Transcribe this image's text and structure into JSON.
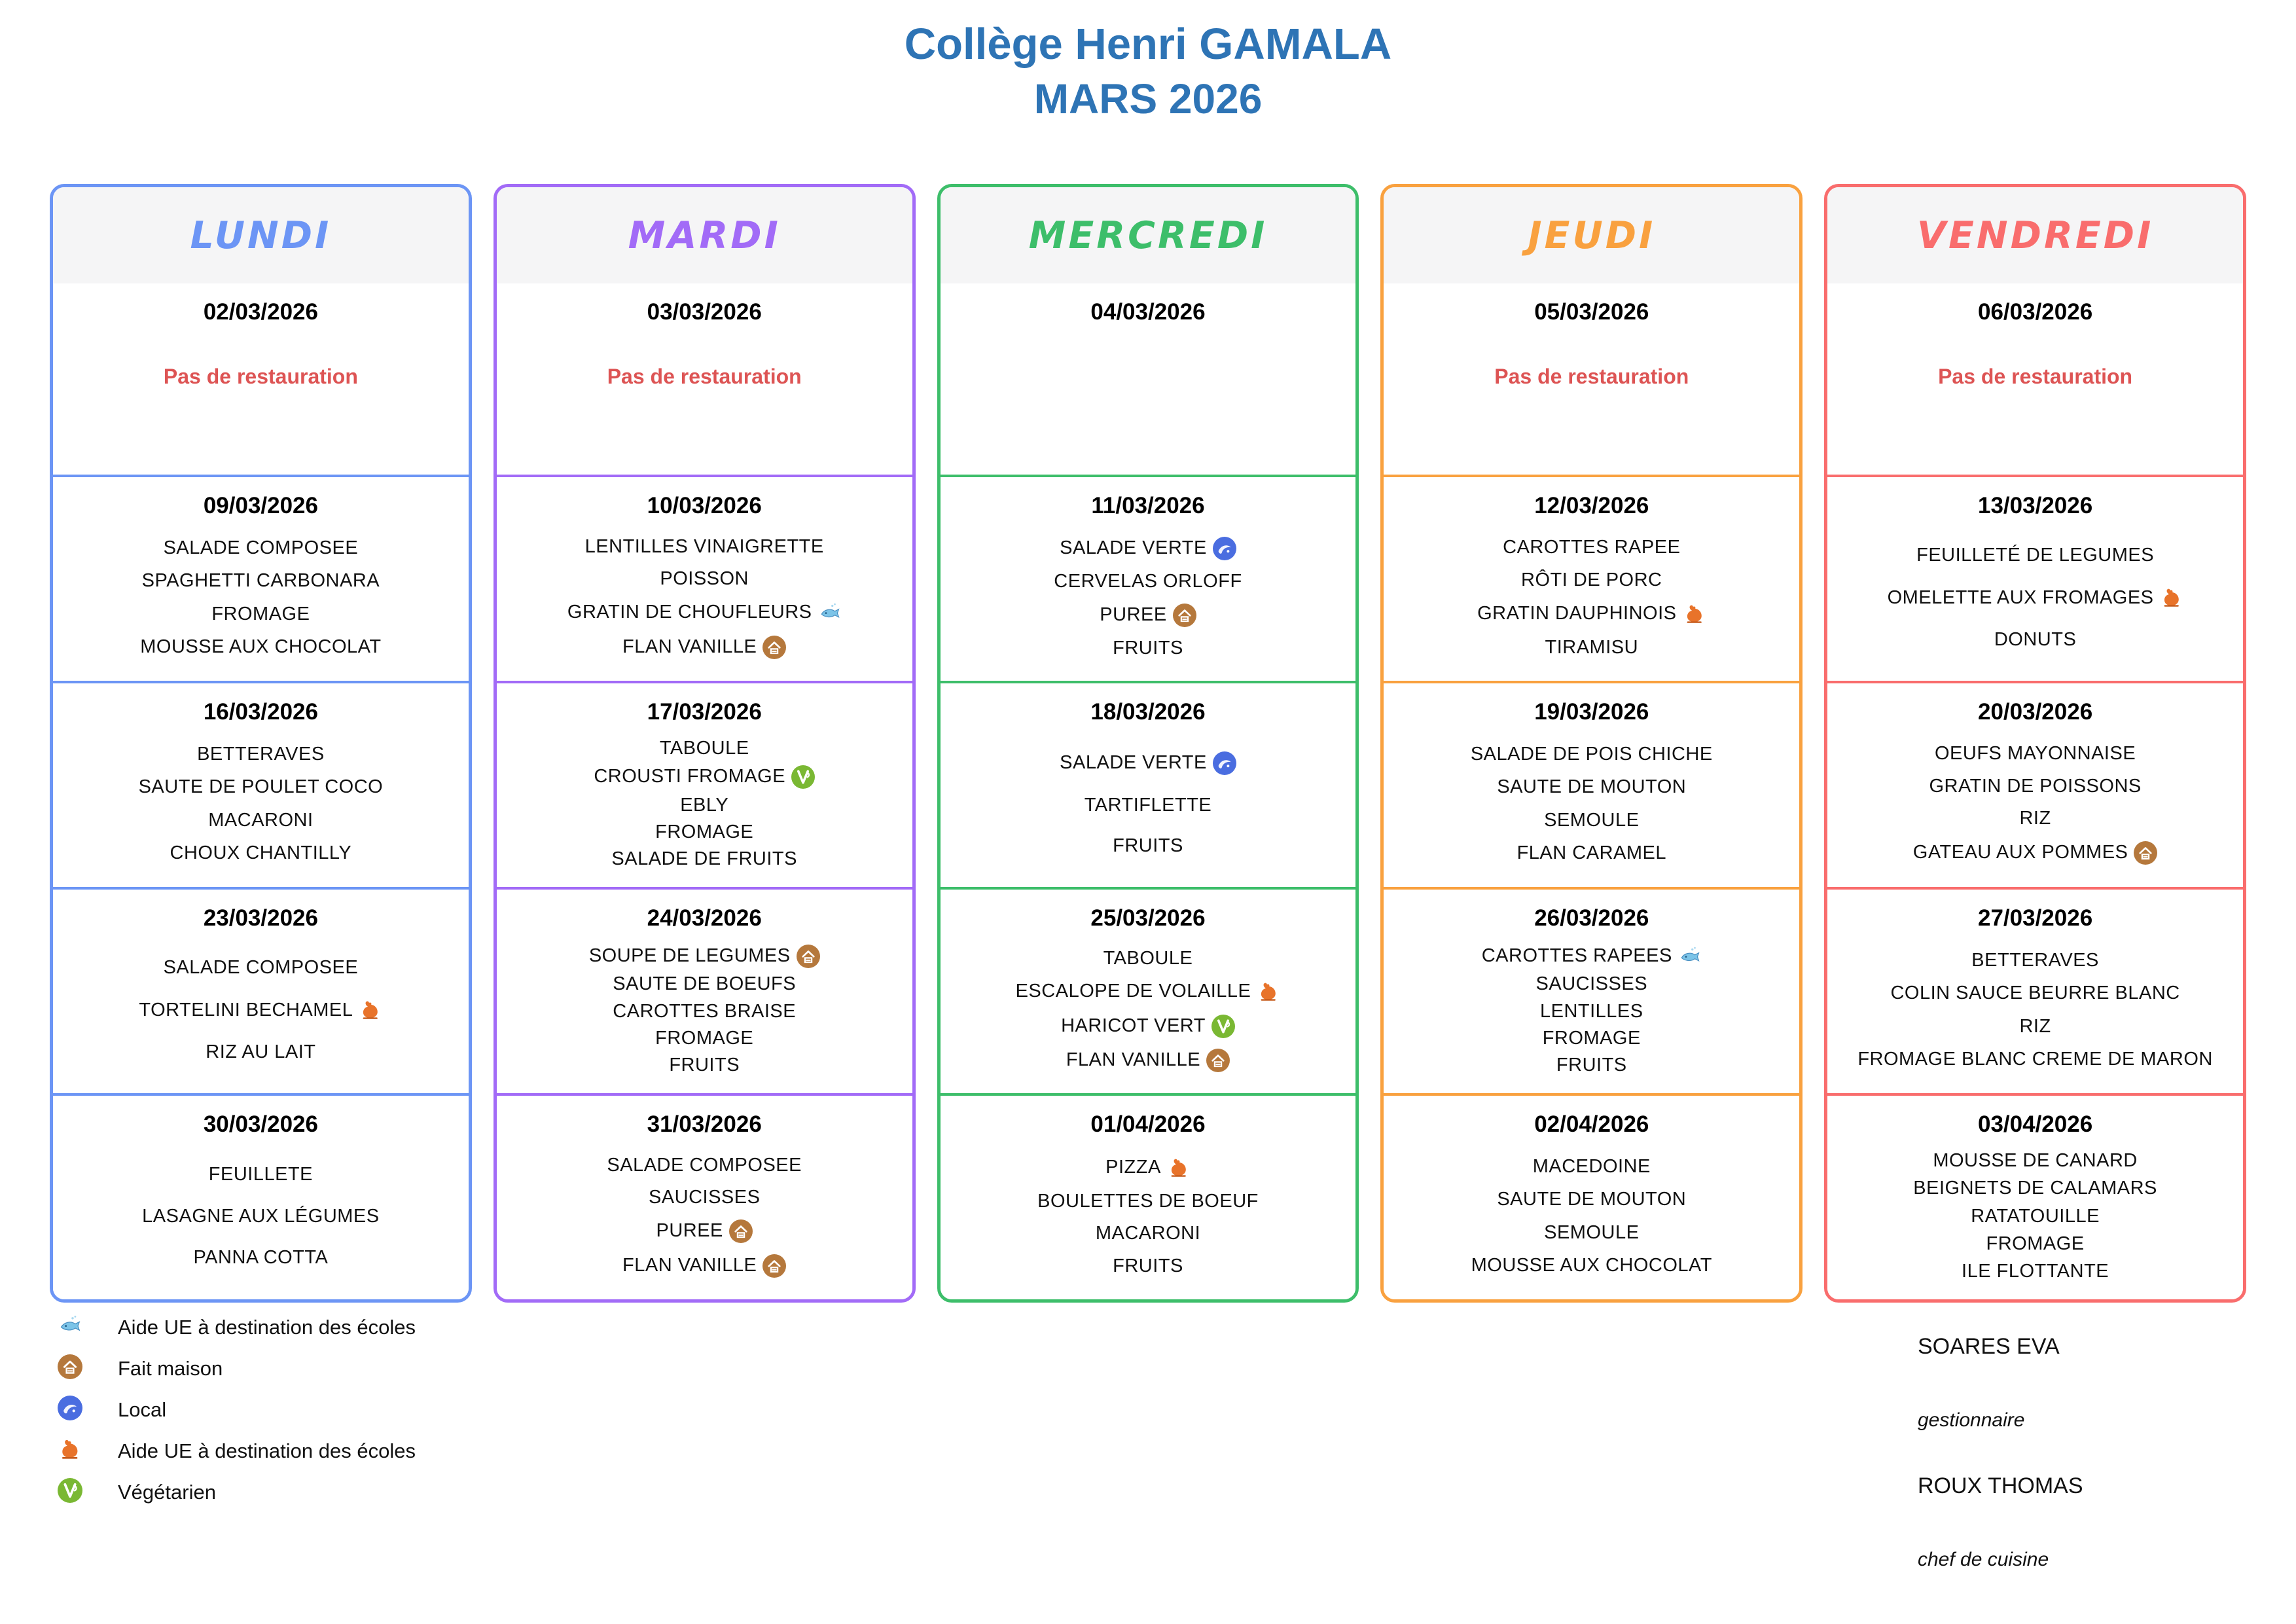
{
  "title": {
    "line1": "Collège Henri GAMALA",
    "line2": "MARS 2026"
  },
  "palette": {
    "title_blue": "#2E74B5",
    "monday_blue": "#6C95F5",
    "tuesday_purple": "#A26BF7",
    "wednesday_green": "#3DBE6A",
    "thursday_orange": "#F9A13F",
    "friday_red": "#F96D6D",
    "closed_red": "#DD5454",
    "header_gray": "#F5F5F6"
  },
  "columns": [
    {
      "day": "LUNDI",
      "color": "#6C95F5",
      "cells": [
        {
          "date": "02/03/2026",
          "closed": "Pas de restauration",
          "items": []
        },
        {
          "date": "09/03/2026",
          "items": [
            {
              "label": "SALADE COMPOSEE"
            },
            {
              "label": "SPAGHETTI CARBONARA"
            },
            {
              "label": "FROMAGE"
            },
            {
              "label": "MOUSSE AUX CHOCOLAT"
            }
          ]
        },
        {
          "date": "16/03/2026",
          "items": [
            {
              "label": "BETTERAVES"
            },
            {
              "label": "SAUTE DE POULET COCO"
            },
            {
              "label": "MACARONI"
            },
            {
              "label": "CHOUX CHANTILLY"
            }
          ]
        },
        {
          "date": "23/03/2026",
          "items": [
            {
              "label": "SALADE COMPOSEE"
            },
            {
              "label": "TORTELINI BECHAMEL",
              "icon": "ue-poultry"
            },
            {
              "label": "RIZ AU LAIT"
            }
          ]
        },
        {
          "date": "30/03/2026",
          "items": [
            {
              "label": "FEUILLETE"
            },
            {
              "label": "LASAGNE AUX LÉGUMES"
            },
            {
              "label": "PANNA COTTA"
            }
          ]
        }
      ]
    },
    {
      "day": "MARDI",
      "color": "#A26BF7",
      "cells": [
        {
          "date": "03/03/2026",
          "closed": "Pas de restauration",
          "items": []
        },
        {
          "date": "10/03/2026",
          "items": [
            {
              "label": "LENTILLES VINAIGRETTE"
            },
            {
              "label": "POISSON"
            },
            {
              "label": "GRATIN DE CHOUFLEURS",
              "icon": "ue-fish"
            },
            {
              "label": "FLAN VANILLE",
              "icon": "fait-maison"
            }
          ]
        },
        {
          "date": "17/03/2026",
          "items": [
            {
              "label": "TABOULE"
            },
            {
              "label": "CROUSTI FROMAGE",
              "icon": "vegetarien"
            },
            {
              "label": "EBLY"
            },
            {
              "label": "FROMAGE"
            },
            {
              "label": "SALADE DE FRUITS"
            }
          ]
        },
        {
          "date": "24/03/2026",
          "items": [
            {
              "label": "SOUPE DE LEGUMES",
              "icon": "fait-maison"
            },
            {
              "label": "SAUTE DE BOEUFS"
            },
            {
              "label": "CAROTTES BRAISE"
            },
            {
              "label": "FROMAGE"
            },
            {
              "label": "FRUITS"
            }
          ]
        },
        {
          "date": "31/03/2026",
          "items": [
            {
              "label": "SALADE COMPOSEE"
            },
            {
              "label": "SAUCISSES"
            },
            {
              "label": "PUREE",
              "icon": "fait-maison"
            },
            {
              "label": "FLAN VANILLE",
              "icon": "fait-maison"
            }
          ]
        }
      ]
    },
    {
      "day": "MERCREDI",
      "color": "#3DBE6A",
      "cells": [
        {
          "date": "04/03/2026",
          "items": []
        },
        {
          "date": "11/03/2026",
          "items": [
            {
              "label": "SALADE VERTE",
              "icon": "local"
            },
            {
              "label": "CERVELAS ORLOFF"
            },
            {
              "label": "PUREE",
              "icon": "fait-maison"
            },
            {
              "label": "FRUITS"
            }
          ]
        },
        {
          "date": "18/03/2026",
          "items": [
            {
              "label": "SALADE VERTE",
              "icon": "local"
            },
            {
              "label": "TARTIFLETTE"
            },
            {
              "label": "FRUITS"
            }
          ]
        },
        {
          "date": "25/03/2026",
          "items": [
            {
              "label": "TABOULE"
            },
            {
              "label": "ESCALOPE DE VOLAILLE",
              "icon": "ue-poultry"
            },
            {
              "label": "HARICOT VERT",
              "icon": "vegetarien"
            },
            {
              "label": "FLAN VANILLE",
              "icon": "fait-maison"
            }
          ]
        },
        {
          "date": "01/04/2026",
          "items": [
            {
              "label": "PIZZA",
              "icon": "ue-poultry"
            },
            {
              "label": "BOULETTES DE BOEUF"
            },
            {
              "label": "MACARONI"
            },
            {
              "label": "FRUITS"
            }
          ]
        }
      ]
    },
    {
      "day": "JEUDI",
      "color": "#F9A13F",
      "cells": [
        {
          "date": "05/03/2026",
          "closed": "Pas de restauration",
          "items": []
        },
        {
          "date": "12/03/2026",
          "items": [
            {
              "label": "CAROTTES RAPEE"
            },
            {
              "label": "RÔTI DE PORC"
            },
            {
              "label": "GRATIN DAUPHINOIS",
              "icon": "ue-poultry"
            },
            {
              "label": "TIRAMISU"
            }
          ]
        },
        {
          "date": "19/03/2026",
          "items": [
            {
              "label": "SALADE DE POIS CHICHE"
            },
            {
              "label": "SAUTE DE MOUTON"
            },
            {
              "label": "SEMOULE"
            },
            {
              "label": "FLAN CARAMEL"
            }
          ]
        },
        {
          "date": "26/03/2026",
          "items": [
            {
              "label": "CAROTTES RAPEES",
              "icon": "ue-fish"
            },
            {
              "label": "SAUCISSES"
            },
            {
              "label": "LENTILLES"
            },
            {
              "label": "FROMAGE"
            },
            {
              "label": "FRUITS"
            }
          ]
        },
        {
          "date": "02/04/2026",
          "items": [
            {
              "label": "MACEDOINE"
            },
            {
              "label": "SAUTE DE MOUTON"
            },
            {
              "label": "SEMOULE"
            },
            {
              "label": "MOUSSE AUX CHOCOLAT"
            }
          ]
        }
      ]
    },
    {
      "day": "VENDREDI",
      "color": "#F96D6D",
      "cells": [
        {
          "date": "06/03/2026",
          "closed": "Pas de restauration",
          "items": []
        },
        {
          "date": "13/03/2026",
          "items": [
            {
              "label": "FEUILLETÉ DE LEGUMES"
            },
            {
              "label": "OMELETTE AUX FROMAGES",
              "icon": "ue-poultry"
            },
            {
              "label": "DONUTS"
            }
          ]
        },
        {
          "date": "20/03/2026",
          "items": [
            {
              "label": "OEUFS MAYONNAISE"
            },
            {
              "label": "GRATIN DE POISSONS"
            },
            {
              "label": "RIZ"
            },
            {
              "label": "GATEAU AUX POMMES",
              "icon": "fait-maison"
            }
          ]
        },
        {
          "date": "27/03/2026",
          "items": [
            {
              "label": "BETTERAVES"
            },
            {
              "label": "COLIN SAUCE BEURRE BLANC"
            },
            {
              "label": "RIZ"
            },
            {
              "label": "FROMAGE BLANC CREME DE MARON"
            }
          ]
        },
        {
          "date": "03/04/2026",
          "items": [
            {
              "label": "MOUSSE DE CANARD"
            },
            {
              "label": "BEIGNETS DE CALAMARS"
            },
            {
              "label": "RATATOUILLE"
            },
            {
              "label": "FROMAGE"
            },
            {
              "label": "ILE FLOTTANTE"
            }
          ]
        }
      ]
    }
  ],
  "legend": [
    {
      "icon": "ue-fish",
      "label": "Aide UE à destination des écoles",
      "color": "#7CC4E8"
    },
    {
      "icon": "fait-maison",
      "label": "Fait maison",
      "color": "#B5783C"
    },
    {
      "icon": "local",
      "label": "Local",
      "color": "#4A6DE0"
    },
    {
      "icon": "ue-poultry",
      "label": "Aide UE à destination des écoles",
      "color": "#E8732A"
    },
    {
      "icon": "vegetarien",
      "label": "Végétarien",
      "color": "#7AB833"
    }
  ],
  "signatures": [
    {
      "name": "SOARES EVA",
      "role": "gestionnaire"
    },
    {
      "name": "ROUX THOMAS",
      "role": "chef de cuisine"
    }
  ]
}
